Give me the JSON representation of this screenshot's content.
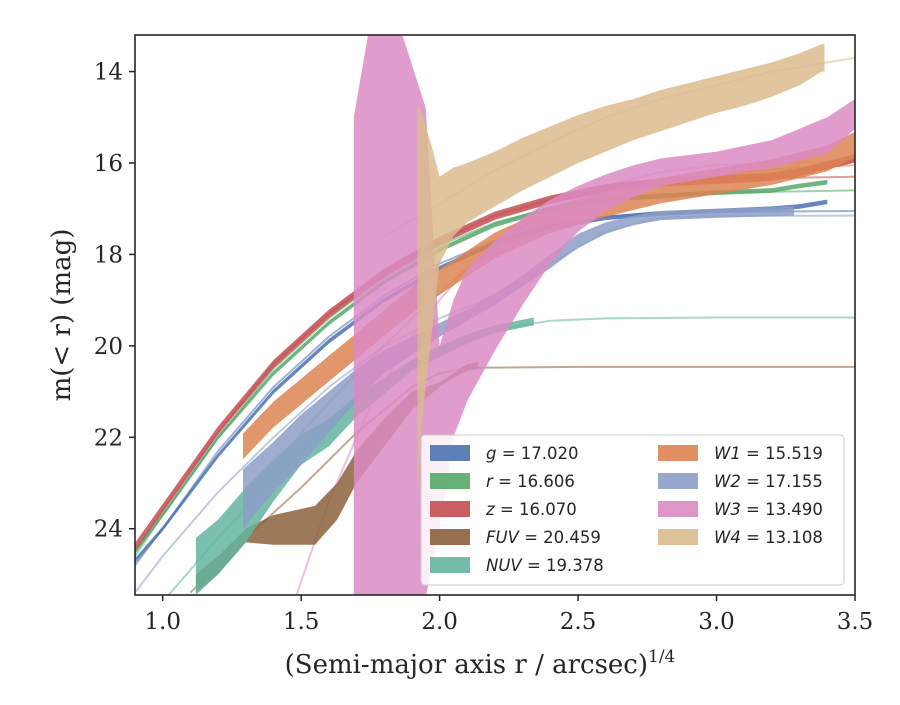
{
  "chart_data": {
    "type": "line",
    "title": "",
    "xlabel": "(Semi-major axis r / arcsec)",
    "xlabel_exponent": "1/4",
    "ylabel": "m(< r) (mag)",
    "xlim": [
      0.9,
      3.5
    ],
    "ylim": [
      25.45,
      13.2
    ],
    "y_inverted": true,
    "x_ticks": [
      "1.0",
      "1.5",
      "2.0",
      "2.5",
      "3.0",
      "3.5"
    ],
    "y_ticks": [
      "14",
      "16",
      "18",
      "20",
      "22",
      "24"
    ],
    "grid": false,
    "legend_position": "lower-right",
    "series": [
      {
        "name": "g",
        "total": "17.020",
        "color": "#4c72b0",
        "model_x": [
          0.9,
          1.0,
          1.2,
          1.4,
          1.6,
          1.8,
          2.0,
          2.2,
          2.4,
          2.6,
          2.8,
          3.0,
          3.5
        ],
        "model_y": [
          24.8,
          24.0,
          22.3,
          20.9,
          19.8,
          18.9,
          18.2,
          17.7,
          17.35,
          17.18,
          17.1,
          17.07,
          17.05
        ],
        "band_x": [
          0.9,
          1.0,
          1.2,
          1.4,
          1.6,
          1.8,
          2.0,
          2.2,
          2.4,
          2.6,
          2.8,
          3.0,
          3.2,
          3.3,
          3.4
        ],
        "band_y": [
          24.7,
          24.0,
          22.4,
          21.0,
          19.9,
          19.0,
          18.3,
          17.75,
          17.4,
          17.2,
          17.1,
          17.05,
          17.0,
          16.95,
          16.85
        ],
        "band_half_width": 0.05
      },
      {
        "name": "r",
        "total": "16.606",
        "color": "#55a868",
        "model_x": [
          0.9,
          1.0,
          1.2,
          1.4,
          1.6,
          1.8,
          2.0,
          2.2,
          2.4,
          2.6,
          2.8,
          3.0,
          3.5
        ],
        "model_y": [
          24.6,
          23.7,
          22.0,
          20.5,
          19.4,
          18.5,
          17.8,
          17.3,
          17.0,
          16.8,
          16.7,
          16.65,
          16.6
        ],
        "band_x": [
          0.9,
          1.0,
          1.2,
          1.4,
          1.6,
          1.8,
          2.0,
          2.2,
          2.4,
          2.6,
          2.8,
          3.0,
          3.2,
          3.3,
          3.4
        ],
        "band_y": [
          24.5,
          23.7,
          22.0,
          20.6,
          19.5,
          18.6,
          17.9,
          17.35,
          17.0,
          16.8,
          16.72,
          16.65,
          16.6,
          16.5,
          16.42
        ],
        "band_half_width": 0.05
      },
      {
        "name": "z",
        "total": "16.070",
        "color": "#c44e52",
        "model_x": [
          0.9,
          1.0,
          1.2,
          1.4,
          1.6,
          1.8,
          2.0,
          2.2,
          2.4,
          2.6,
          2.8,
          3.0,
          3.5
        ],
        "model_y": [
          24.5,
          23.6,
          21.9,
          20.4,
          19.3,
          18.4,
          17.7,
          17.15,
          16.8,
          16.55,
          16.4,
          16.35,
          16.3
        ],
        "band_x": [
          0.9,
          1.0,
          1.2,
          1.4,
          1.6,
          1.8,
          2.0,
          2.2,
          2.4,
          2.6,
          2.8,
          3.0,
          3.2,
          3.3,
          3.4,
          3.5
        ],
        "band_y": [
          24.4,
          23.55,
          21.85,
          20.4,
          19.3,
          18.4,
          17.7,
          17.15,
          16.8,
          16.55,
          16.42,
          16.37,
          16.3,
          16.2,
          16.05,
          15.9
        ],
        "band_half_width": 0.09
      },
      {
        "name": "FUV",
        "total": "20.459",
        "color": "#8c613c",
        "model_x": [
          1.1,
          1.3,
          1.5,
          1.7,
          1.9,
          2.0,
          2.1,
          2.5,
          3.0,
          3.5
        ],
        "model_y": [
          25.4,
          24.2,
          23.1,
          21.9,
          20.9,
          20.6,
          20.48,
          20.46,
          20.46,
          20.46
        ],
        "band_x": [
          1.12,
          1.2,
          1.3,
          1.4,
          1.55,
          1.63,
          1.7,
          1.8,
          1.9,
          2.0,
          2.05,
          2.1,
          2.14
        ],
        "band_top": [
          25.0,
          24.6,
          24.0,
          23.7,
          23.5,
          23.0,
          22.3,
          21.6,
          21.0,
          20.8,
          20.6,
          20.4,
          20.35
        ],
        "band_bottom": [
          25.4,
          25.0,
          24.3,
          24.35,
          24.35,
          23.8,
          23.0,
          22.2,
          21.4,
          20.9,
          20.7,
          20.55,
          20.5
        ]
      },
      {
        "name": "NUV",
        "total": "19.378",
        "color": "#64b5a0",
        "model_x": [
          0.9,
          1.0,
          1.2,
          1.4,
          1.6,
          1.8,
          2.0,
          2.2,
          2.4,
          2.6,
          3.0,
          3.5
        ],
        "model_y": [
          26.2,
          25.6,
          24.2,
          22.9,
          21.7,
          20.8,
          20.1,
          19.65,
          19.45,
          19.4,
          19.38,
          19.38
        ],
        "band_x": [
          1.12,
          1.2,
          1.3,
          1.4,
          1.5,
          1.6,
          1.7,
          1.8,
          1.9,
          2.0,
          2.1,
          2.2,
          2.34
        ],
        "band_top": [
          24.2,
          23.8,
          23.1,
          22.5,
          21.95,
          21.6,
          21.1,
          20.7,
          20.3,
          20.0,
          19.75,
          19.55,
          19.38
        ],
        "band_bottom": [
          25.45,
          25.0,
          24.3,
          23.4,
          22.6,
          22.2,
          21.55,
          21.05,
          20.55,
          20.25,
          19.95,
          19.72,
          19.55
        ]
      },
      {
        "name": "W1",
        "total": "15.519",
        "color": "#dd8452",
        "model_x": [
          1.3,
          1.5,
          1.7,
          1.9,
          2.1,
          2.3,
          2.5,
          2.7,
          2.9,
          3.1,
          3.3,
          3.5
        ],
        "model_y": [
          23.5,
          21.9,
          20.6,
          19.4,
          18.3,
          17.4,
          16.85,
          16.55,
          16.35,
          16.2,
          16.1,
          16.05
        ],
        "band_x": [
          1.29,
          1.4,
          1.5,
          1.6,
          1.7,
          1.8,
          1.9,
          2.0,
          2.2,
          2.4,
          2.6,
          2.8,
          3.0,
          3.2,
          3.4,
          3.5
        ],
        "band_y": [
          22.2,
          21.5,
          21.0,
          20.5,
          20.0,
          19.5,
          19.0,
          18.6,
          17.8,
          17.25,
          16.9,
          16.6,
          16.4,
          16.2,
          15.9,
          15.6
        ],
        "band_half_width": 0.28
      },
      {
        "name": "W2",
        "total": "17.155",
        "color": "#8c9ec7",
        "model_x": [
          0.9,
          1.0,
          1.2,
          1.4,
          1.6,
          1.8,
          2.0,
          2.2,
          2.4,
          2.6,
          2.8,
          3.0,
          3.5
        ],
        "model_y": [
          25.4,
          24.6,
          23.2,
          22.0,
          20.9,
          20.0,
          19.4,
          18.9,
          18.2,
          17.5,
          17.2,
          17.16,
          17.15
        ],
        "band_x": [
          1.29,
          1.4,
          1.5,
          1.6,
          1.7,
          1.8,
          1.9,
          2.0,
          2.1,
          2.2,
          2.3,
          2.4,
          2.5,
          2.6,
          2.7,
          2.8,
          3.0,
          3.28
        ],
        "band_top": [
          22.7,
          22.1,
          21.5,
          21.0,
          20.5,
          20.1,
          19.8,
          19.5,
          19.2,
          18.85,
          18.45,
          18.0,
          17.55,
          17.3,
          17.15,
          17.05,
          17.0,
          16.95
        ],
        "band_bottom": [
          24.0,
          23.2,
          22.6,
          21.9,
          21.2,
          20.6,
          20.2,
          19.8,
          19.45,
          19.1,
          18.7,
          18.3,
          17.85,
          17.55,
          17.35,
          17.25,
          17.2,
          17.15
        ]
      },
      {
        "name": "W3",
        "total": "13.490",
        "color": "#da8bc3",
        "model_x": [
          1.48,
          1.6,
          1.75,
          1.9,
          2.0,
          2.1,
          2.25,
          2.4,
          2.6,
          2.8,
          3.0,
          3.2,
          3.5
        ],
        "model_y": [
          25.5,
          23.4,
          21.3,
          19.8,
          19.0,
          18.3,
          17.6,
          17.05,
          16.5,
          16.2,
          16.05,
          16.0,
          15.95
        ],
        "band_x": [
          1.69,
          1.75,
          1.8,
          1.85,
          1.95,
          2.0,
          2.05,
          2.1,
          2.2,
          2.3,
          2.4,
          2.5,
          2.6,
          2.7,
          2.8,
          3.0,
          3.2,
          3.4,
          3.5
        ],
        "band_top": [
          15.0,
          12.9,
          12.9,
          12.9,
          14.8,
          20.0,
          19.0,
          18.3,
          17.7,
          17.2,
          16.8,
          16.5,
          16.25,
          16.05,
          15.9,
          15.75,
          15.5,
          15.0,
          14.6
        ],
        "band_bottom": [
          25.5,
          25.5,
          25.5,
          25.5,
          25.5,
          24.0,
          22.0,
          21.2,
          20.1,
          19.1,
          18.2,
          17.5,
          17.05,
          16.75,
          16.5,
          16.3,
          16.1,
          15.8,
          15.25
        ]
      },
      {
        "name": "W4",
        "total": "13.108",
        "color": "#dbbb8e",
        "model_x": [
          1.8,
          2.0,
          2.2,
          2.4,
          2.6,
          2.8,
          3.0,
          3.2,
          3.5
        ],
        "model_y": [
          17.6,
          16.9,
          16.15,
          15.55,
          15.0,
          14.6,
          14.3,
          14.0,
          13.7
        ],
        "band_x": [
          1.92,
          1.93,
          1.97,
          2.0,
          2.05,
          2.1,
          2.2,
          2.3,
          2.4,
          2.5,
          2.6,
          2.7,
          2.8,
          2.9,
          3.0,
          3.1,
          3.2,
          3.3,
          3.38,
          3.39
        ],
        "band_top": [
          14.8,
          14.8,
          15.6,
          16.3,
          16.1,
          16.0,
          15.75,
          15.45,
          15.2,
          14.95,
          14.75,
          14.6,
          14.4,
          14.25,
          14.1,
          13.95,
          13.8,
          13.6,
          13.4,
          13.4
        ],
        "band_bottom": [
          23.6,
          22.0,
          19.8,
          18.2,
          17.6,
          17.3,
          16.95,
          16.6,
          16.3,
          16.0,
          15.75,
          15.5,
          15.3,
          15.1,
          14.9,
          14.75,
          14.55,
          14.3,
          14.0,
          14.0
        ]
      }
    ]
  },
  "colors": {
    "axes": "#262626",
    "background": "#ffffff",
    "legend_border": "#cccccc"
  }
}
